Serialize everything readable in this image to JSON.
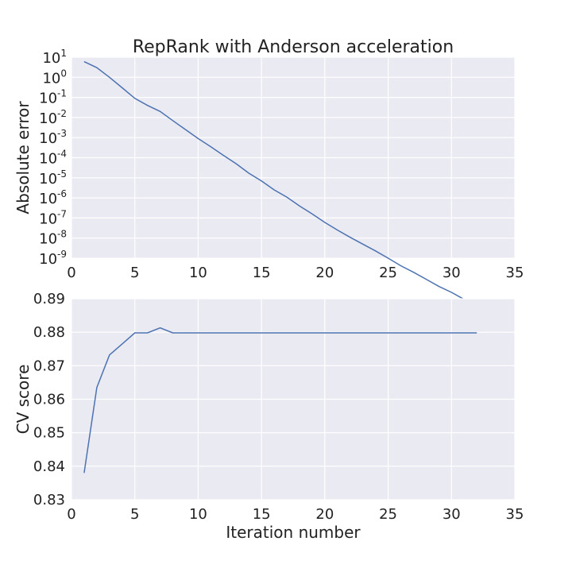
{
  "chart_data": [
    {
      "type": "line",
      "title": "RepRank with Anderson acceleration",
      "xlabel": "",
      "ylabel": "Absolute error",
      "yscale": "log",
      "xlim": [
        0,
        35
      ],
      "ylim_exp": [
        -9,
        1
      ],
      "grid": true,
      "x_ticks": [
        0,
        5,
        10,
        15,
        20,
        25,
        30,
        35
      ],
      "y_tick_exponents": [
        1,
        0,
        -1,
        -2,
        -3,
        -4,
        -5,
        -6,
        -7,
        -8,
        -9
      ],
      "y_tick_base": "10",
      "series": [
        {
          "x": [
            1,
            2,
            3,
            4,
            5,
            6,
            7,
            8,
            9,
            10,
            11,
            12,
            13,
            14,
            15,
            16,
            17,
            18,
            19,
            20,
            21,
            22,
            23,
            24,
            25,
            26,
            27,
            28,
            29,
            30,
            31,
            32
          ],
          "y": [
            6,
            3,
            1,
            0.3,
            0.09,
            0.04,
            0.02,
            0.007,
            0.0025,
            0.0009,
            0.00035,
            0.00013,
            5e-05,
            1.7e-05,
            7e-06,
            2.5e-06,
            1.1e-06,
            4e-07,
            1.6e-07,
            6e-08,
            2.5e-08,
            1.1e-08,
            5e-09,
            2.3e-09,
            1e-09,
            4.2e-10,
            2e-10,
            9e-11,
            4e-11,
            2e-11,
            9e-12,
            3.5e-12
          ]
        }
      ]
    },
    {
      "type": "line",
      "title": "",
      "xlabel": "Iteration number",
      "ylabel": "CV score",
      "xlim": [
        0,
        35
      ],
      "ylim": [
        0.83,
        0.89
      ],
      "grid": true,
      "x_ticks": [
        0,
        5,
        10,
        15,
        20,
        25,
        30,
        35
      ],
      "y_ticks": [
        "0.83",
        "0.84",
        "0.85",
        "0.86",
        "0.87",
        "0.88",
        "0.89"
      ],
      "series": [
        {
          "x": [
            1,
            2,
            3,
            4,
            5,
            6,
            7,
            8,
            9,
            10,
            11,
            12,
            13,
            14,
            15,
            16,
            17,
            18,
            19,
            20,
            21,
            22,
            23,
            24,
            25,
            26,
            27,
            28,
            29,
            30,
            31,
            32
          ],
          "y": [
            0.838,
            0.8635,
            0.8732,
            0.8765,
            0.8798,
            0.8798,
            0.8813,
            0.8798,
            0.8798,
            0.8798,
            0.8798,
            0.8798,
            0.8798,
            0.8798,
            0.8798,
            0.8798,
            0.8798,
            0.8798,
            0.8798,
            0.8798,
            0.8798,
            0.8798,
            0.8798,
            0.8798,
            0.8798,
            0.8798,
            0.8798,
            0.8798,
            0.8798,
            0.8798,
            0.8798,
            0.8798
          ]
        }
      ]
    }
  ]
}
